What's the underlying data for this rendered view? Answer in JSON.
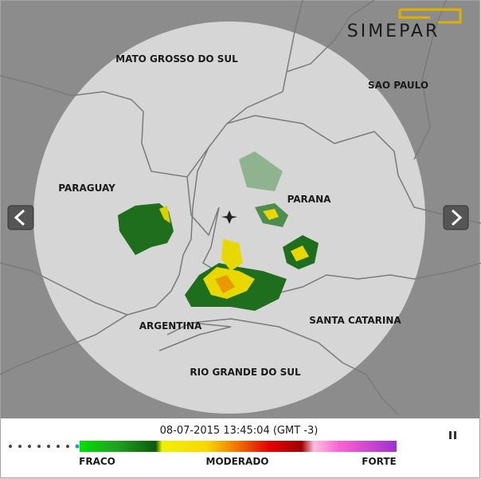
{
  "header": {
    "logo": "SIMEPAR"
  },
  "map": {
    "regions": [
      "MATO GROSSO DO SUL",
      "SAO PAULO",
      "PARAGUAY",
      "PARANA",
      "ARGENTINA",
      "SANTA CATARINA",
      "RIO GRANDE DO SUL"
    ]
  },
  "footer": {
    "timestamp": "08-07-2015 13:45:04 (GMT -3)",
    "legend": [
      "FRACO",
      "MODERADO",
      "FORTE"
    ]
  }
}
